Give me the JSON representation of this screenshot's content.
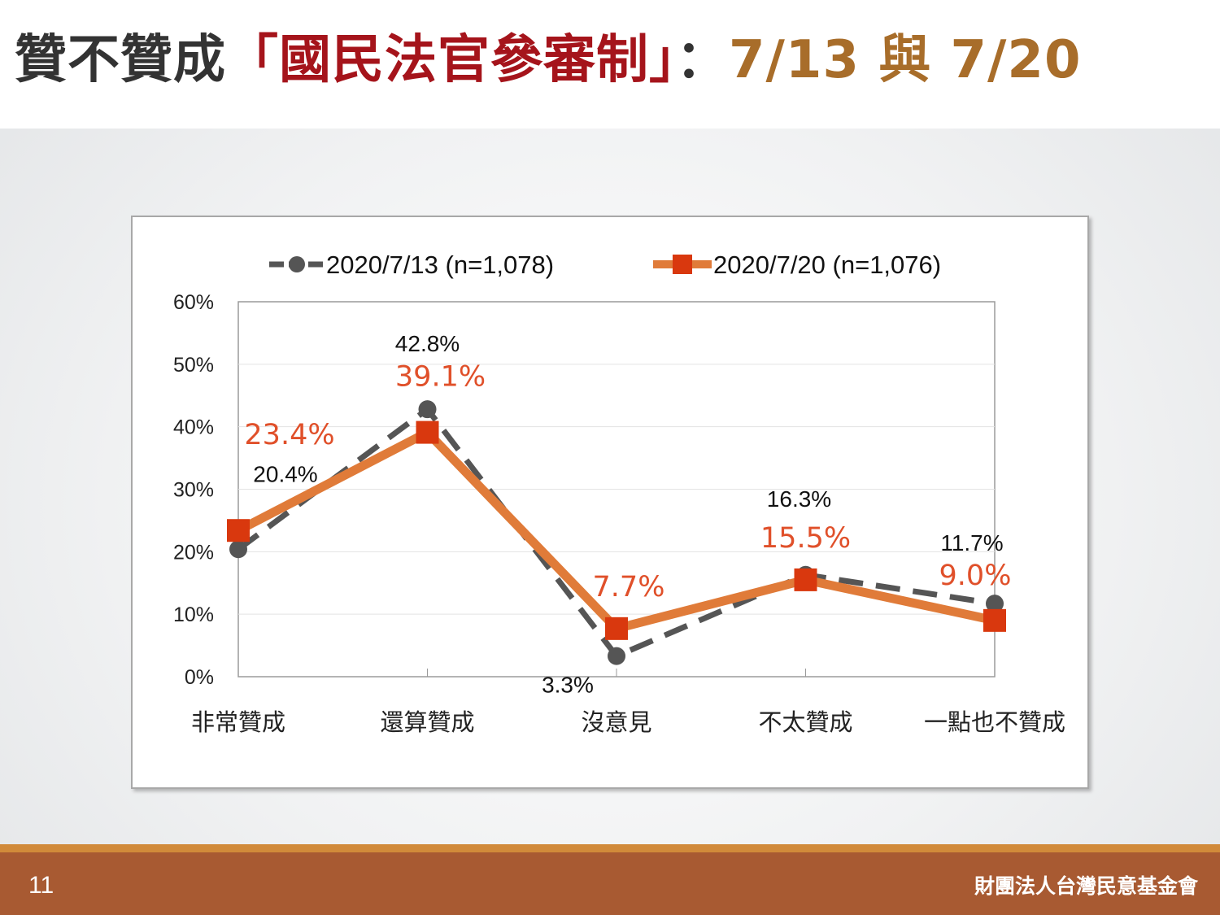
{
  "title": {
    "part1": "贊不贊成",
    "part2": "「國民法官參審制」",
    "part3": "：",
    "part4": "7/13 與 7/20"
  },
  "footer": {
    "page_number": "11",
    "organization": "財團法人台灣民意基金會"
  },
  "colors": {
    "series1": "#555555",
    "series2_line": "#e07b39",
    "series2_marker": "#d9380e",
    "series2_label": "#e0502a",
    "title_red": "#a5141b",
    "title_gold": "#a86d2a",
    "footer": "#a85a32"
  },
  "chart_data": {
    "type": "line",
    "categories": [
      "非常贊成",
      "還算贊成",
      "沒意見",
      "不太贊成",
      "一點也不贊成"
    ],
    "series": [
      {
        "name": "2020/7/13 (n=1,078)",
        "values": [
          20.4,
          42.8,
          3.3,
          16.3,
          11.7
        ],
        "labels": [
          "20.4%",
          "42.8%",
          "3.3%",
          "16.3%",
          "11.7%"
        ],
        "style": "dashed, circle markers"
      },
      {
        "name": "2020/7/20 (n=1,076)",
        "values": [
          23.4,
          39.1,
          7.7,
          15.5,
          9.0
        ],
        "labels": [
          "23.4%",
          "39.1%",
          "7.7%",
          "15.5%",
          "9.0%"
        ],
        "style": "solid, square markers"
      }
    ],
    "yticks": [
      "0%",
      "10%",
      "20%",
      "30%",
      "40%",
      "50%",
      "60%"
    ],
    "ylim": [
      0,
      60
    ],
    "grid": true,
    "legend": "top"
  }
}
